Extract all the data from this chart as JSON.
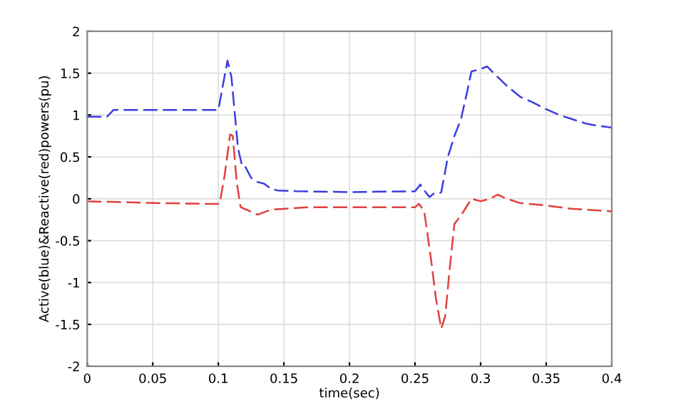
{
  "chart_data": {
    "type": "line",
    "xlabel": "time(sec)",
    "ylabel": "Active(blue)&Reactive(red)powers(pu)",
    "xlim": [
      0,
      0.4
    ],
    "ylim": [
      -2,
      2
    ],
    "xticks": [
      0,
      0.05,
      0.1,
      0.15,
      0.2,
      0.25,
      0.3,
      0.35,
      0.4
    ],
    "yticks": [
      -2,
      -1.5,
      -1,
      -0.5,
      0,
      0.5,
      1,
      1.5,
      2
    ],
    "grid": true,
    "line_style": "dashed",
    "marker": "none",
    "series": [
      {
        "color": "#3c3ce0",
        "x": [
          0,
          0.015,
          0.02,
          0.09,
          0.1,
          0.104,
          0.107,
          0.11,
          0.115,
          0.118,
          0.12,
          0.125,
          0.13,
          0.135,
          0.14,
          0.145,
          0.16,
          0.2,
          0.25,
          0.254,
          0.258,
          0.261,
          0.264,
          0.268,
          0.27,
          0.275,
          0.28,
          0.285,
          0.29,
          0.293,
          0.3,
          0.305,
          0.31,
          0.32,
          0.33,
          0.34,
          0.35,
          0.36,
          0.37,
          0.38,
          0.39,
          0.4
        ],
        "values": [
          0.98,
          0.98,
          1.06,
          1.06,
          1.06,
          1.4,
          1.65,
          1.45,
          0.6,
          0.4,
          0.4,
          0.25,
          0.2,
          0.18,
          0.12,
          0.1,
          0.09,
          0.08,
          0.09,
          0.17,
          0.08,
          0.02,
          0.06,
          0.06,
          0.08,
          0.5,
          0.75,
          0.95,
          1.3,
          1.52,
          1.55,
          1.58,
          1.5,
          1.35,
          1.22,
          1.15,
          1.07,
          1.0,
          0.95,
          0.9,
          0.87,
          0.85
        ]
      },
      {
        "color": "#e04040",
        "x": [
          0,
          0.05,
          0.09,
          0.101,
          0.105,
          0.109,
          0.111,
          0.114,
          0.117,
          0.12,
          0.13,
          0.14,
          0.15,
          0.17,
          0.25,
          0.253,
          0.257,
          0.262,
          0.266,
          0.27,
          0.273,
          0.276,
          0.28,
          0.285,
          0.293,
          0.3,
          0.307,
          0.313,
          0.32,
          0.33,
          0.35,
          0.37,
          0.4
        ],
        "values": [
          -0.03,
          -0.05,
          -0.06,
          -0.06,
          0.3,
          0.77,
          0.75,
          0.2,
          -0.1,
          -0.12,
          -0.19,
          -0.13,
          -0.12,
          -0.1,
          -0.1,
          -0.06,
          -0.15,
          -0.7,
          -1.2,
          -1.55,
          -1.4,
          -0.9,
          -0.3,
          -0.2,
          0.0,
          -0.03,
          0.0,
          0.05,
          0.0,
          -0.05,
          -0.08,
          -0.12,
          -0.15
        ]
      }
    ]
  }
}
